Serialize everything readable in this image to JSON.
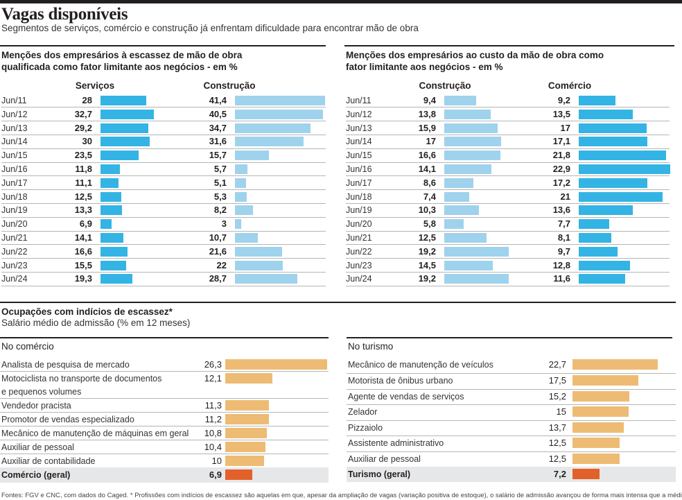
{
  "header": {
    "title": "Vagas disponíveis",
    "subtitle": "Segmentos de serviços, comércio e construção já enfrentam dificuldade para encontrar mão de obra"
  },
  "colors": {
    "servicos": "#33b4e5",
    "construcao": "#9fd2ec",
    "comercio": "#33b4e5",
    "ocupacao": "#edbb73",
    "geral": "#e2612a",
    "geral_row_bg": "#e6e7e8"
  },
  "chart_data": [
    {
      "type": "bar",
      "orientation": "horizontal",
      "title": "Menções dos empresários à escassez de mão de obra qualificada como fator limitante aos negócios - em %",
      "categories": [
        "Jun/11",
        "Jun/12",
        "Jun/13",
        "Jun/14",
        "Jun/15",
        "Jun/16",
        "Jun/17",
        "Jun/18",
        "Jun/19",
        "Jun/20",
        "Jun/21",
        "Jun/22",
        "Jun/23",
        "Jun/24"
      ],
      "series": [
        {
          "name": "Serviços",
          "values": [
            28,
            32.7,
            29.2,
            30,
            23.5,
            11.8,
            11.1,
            12.5,
            13.3,
            6.9,
            14.1,
            16.6,
            15.5,
            19.3
          ],
          "labels": [
            "28",
            "32,7",
            "29,2",
            "30",
            "23,5",
            "11,8",
            "11,1",
            "12,5",
            "13,3",
            "6,9",
            "14,1",
            "16,6",
            "15,5",
            "19,3"
          ]
        },
        {
          "name": "Construção",
          "values": [
            41.4,
            40.5,
            34.7,
            31.6,
            15.7,
            5.7,
            5.1,
            5.3,
            8.2,
            3,
            10.7,
            21.6,
            22,
            28.7
          ],
          "labels": [
            "41,4",
            "40,5",
            "34,7",
            "31,6",
            "15,7",
            "5,7",
            "5,1",
            "5,3",
            "8,2",
            "3",
            "10,7",
            "21,6",
            "22",
            "28,7"
          ]
        }
      ]
    },
    {
      "type": "bar",
      "orientation": "horizontal",
      "title": "Menções dos empresários ao custo da mão de obra como fator limitante aos negócios - em %",
      "categories": [
        "Jun/11",
        "Jun/12",
        "Jun/13",
        "Jun/14",
        "Jun/15",
        "Jun/16",
        "Jun/17",
        "Jun/18",
        "Jun/19",
        "Jun/20",
        "Jun/21",
        "Jun/22",
        "Jun/23",
        "Jun/24"
      ],
      "series": [
        {
          "name": "Construção",
          "values": [
            9.4,
            13.8,
            15.9,
            17,
            16.6,
            14.1,
            8.6,
            7.4,
            10.3,
            5.8,
            12.5,
            19.2,
            14.5,
            19.2
          ],
          "labels": [
            "9,4",
            "13,8",
            "15,9",
            "17",
            "16,6",
            "14,1",
            "8,6",
            "7,4",
            "10,3",
            "5,8",
            "12,5",
            "19,2",
            "14,5",
            "19,2"
          ]
        },
        {
          "name": "Comércio",
          "values": [
            9.2,
            13.5,
            17,
            17.1,
            21.8,
            22.9,
            17.2,
            21,
            13.6,
            7.7,
            8.1,
            9.7,
            12.8,
            11.6
          ],
          "labels": [
            "9,2",
            "13,5",
            "17",
            "17,1",
            "21,8",
            "22,9",
            "17,2",
            "21",
            "13,6",
            "7,7",
            "8,1",
            "9,7",
            "12,8",
            "11,6"
          ]
        }
      ]
    },
    {
      "type": "bar",
      "orientation": "horizontal",
      "title": "No comércio",
      "categories": [
        "Analista de pesquisa de mercado",
        "Motociclista no transporte de documentos e pequenos volumes",
        "Vendedor pracista",
        "Promotor de vendas especializado",
        "Mecânico de manutenção de máquinas em geral",
        "Auxiliar de pessoal",
        "Auxiliar de contabilidade",
        "Comércio (geral)"
      ],
      "category_lines": [
        [
          "Analista de pesquisa de mercado"
        ],
        [
          "Motociclista no transporte de documentos",
          "e pequenos volumes"
        ],
        [
          "Vendedor pracista"
        ],
        [
          "Promotor de vendas especializado"
        ],
        [
          "Mecânico de manutenção de máquinas em geral"
        ],
        [
          "Auxiliar de pessoal"
        ],
        [
          "Auxiliar de contabilidade"
        ],
        [
          "Comércio (geral)"
        ]
      ],
      "values": [
        26.3,
        12.1,
        11.3,
        11.2,
        10.8,
        10.4,
        10,
        6.9
      ],
      "labels": [
        "26,3",
        "12,1",
        "11,3",
        "11,2",
        "10,8",
        "10,4",
        "10",
        "6,9"
      ]
    },
    {
      "type": "bar",
      "orientation": "horizontal",
      "title": "No turismo",
      "categories": [
        "Mecânico de manutenção de veículos",
        "Motorista de ônibus urbano",
        "Agente de vendas de serviços",
        "Zelador",
        "Pizzaiolo",
        "Assistente administrativo",
        "Auxiliar de pessoal",
        "Turismo (geral)"
      ],
      "values": [
        22.7,
        17.5,
        15.2,
        15,
        13.7,
        12.5,
        12.5,
        7.2
      ],
      "labels": [
        "22,7",
        "17,5",
        "15,2",
        "15",
        "13,7",
        "12,5",
        "12,5",
        "7,2"
      ]
    }
  ],
  "section3": {
    "title": "Ocupações com indícios de escassez*",
    "subtitle": "Salário médio de admissão (% em 12 meses)"
  },
  "footer": "Fontes: FGV e CNC, com dados do Caged. * Profissões com indícios de escassez são aquelas em que, apesar da ampliação de vagas (variação positiva de estoque), o salário de admissão avançou de forma mais intensa que a média do setor"
}
